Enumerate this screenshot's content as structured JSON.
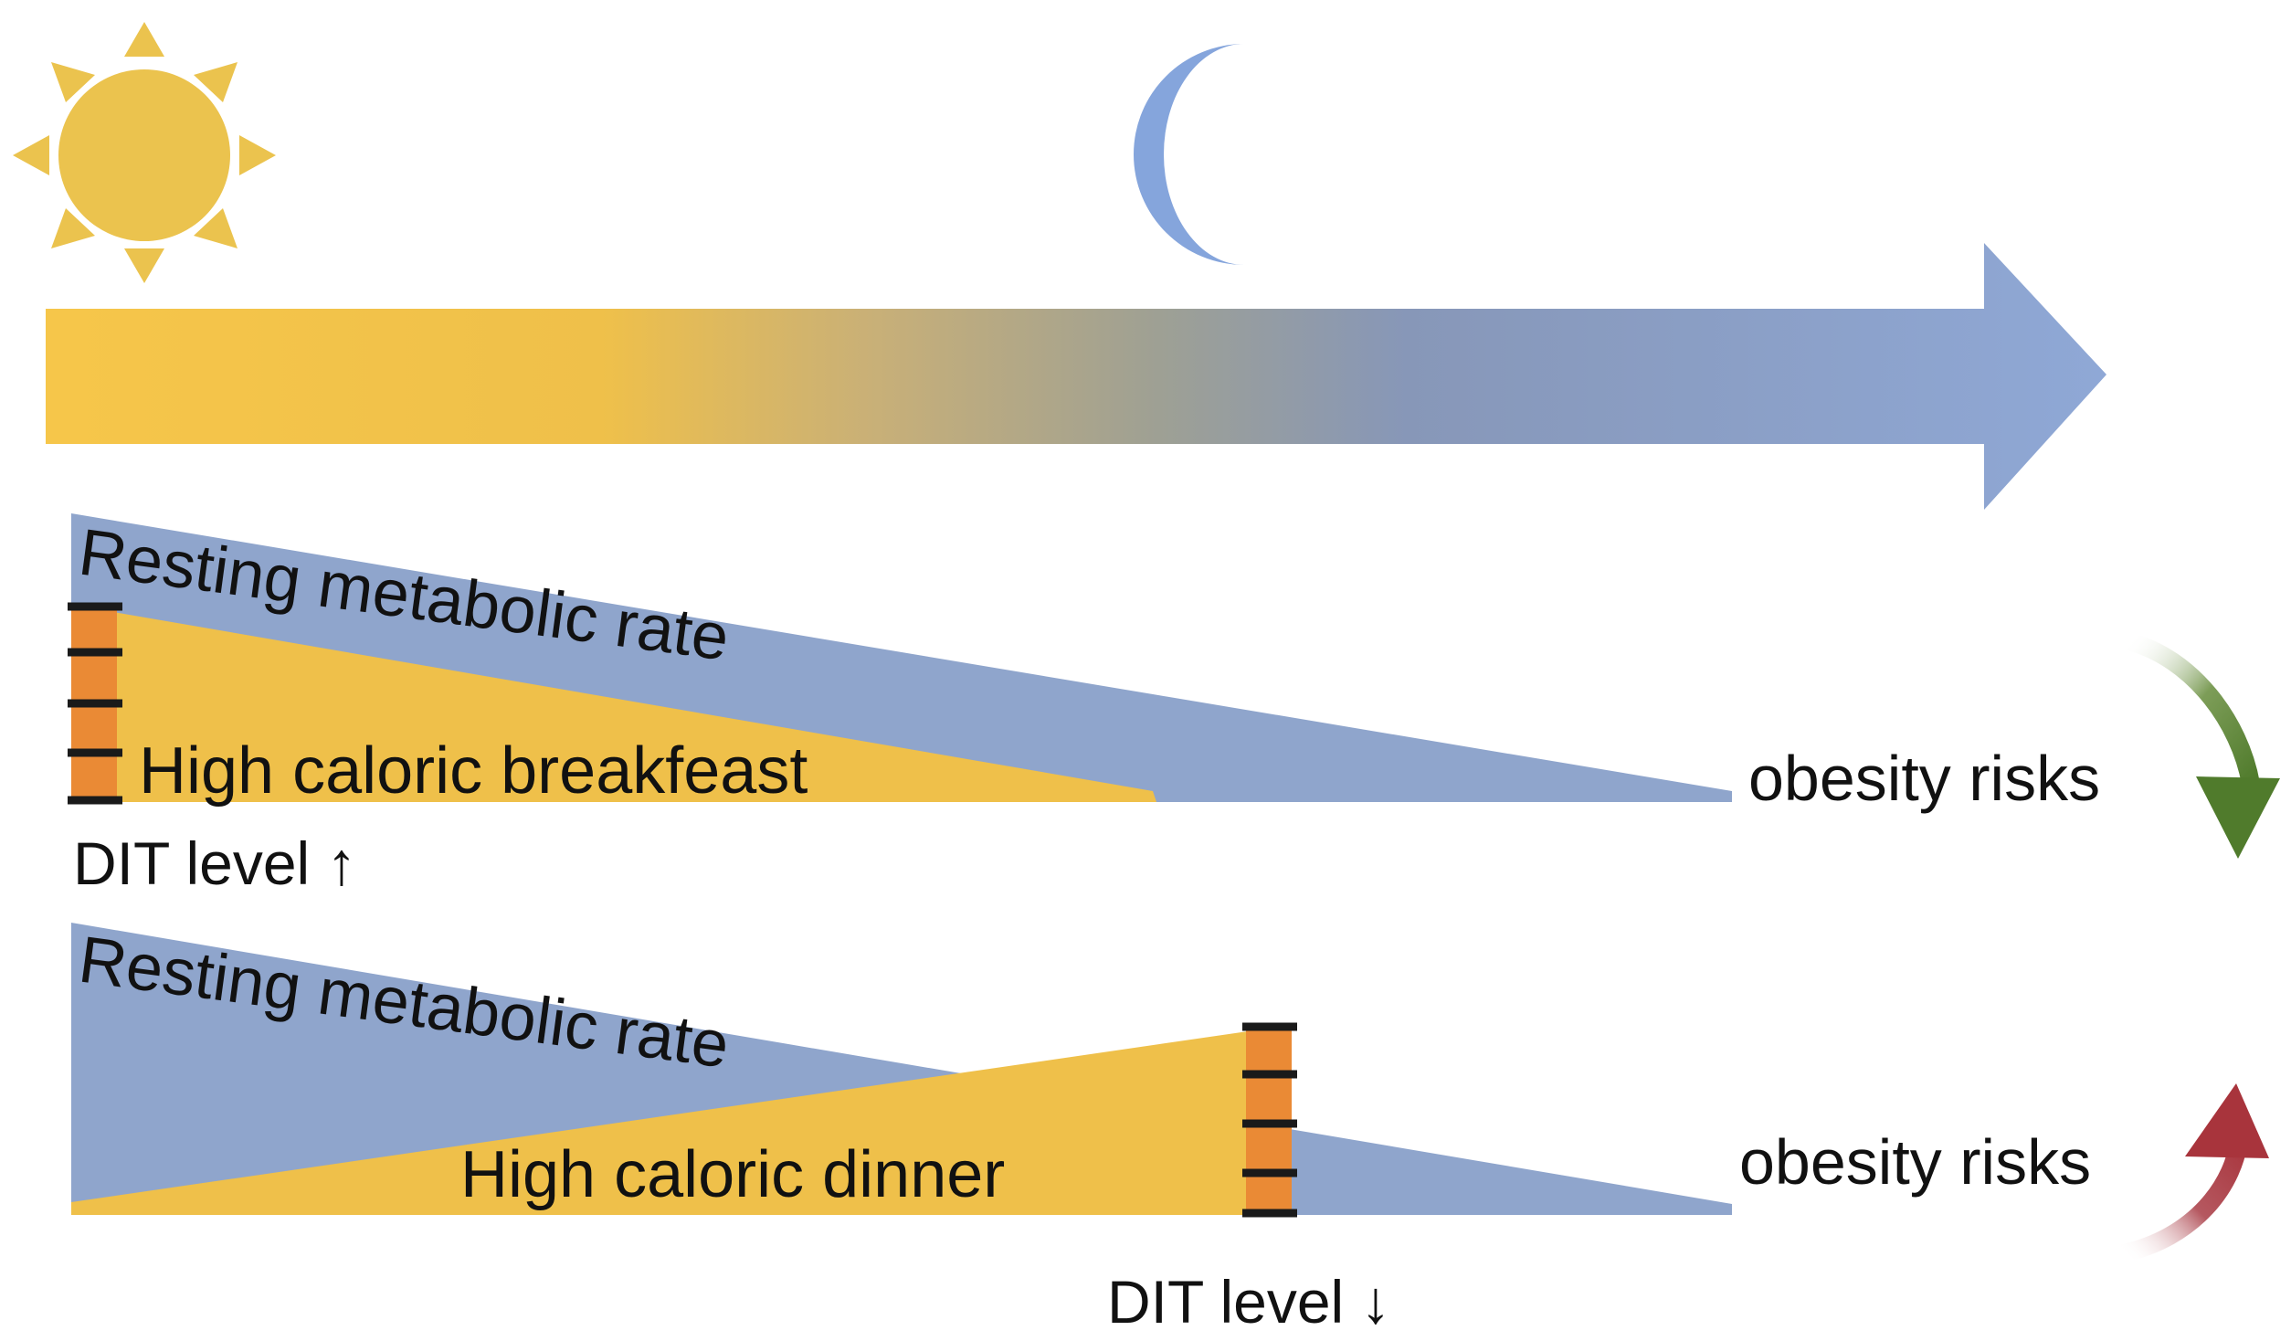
{
  "colors": {
    "sun": "#ebc34e",
    "moon": "#85a5dc",
    "arrow_day": "#f6c64a",
    "arrow_mid": "#9ea094",
    "arrow_night": "#8aa1cc",
    "resting_rate": "#8fa5cc",
    "meal": "#efc04a",
    "dit_bar": "#ea8a35",
    "tick": "#1a1a1a",
    "risk_down": "#507b2c",
    "risk_up": "#a8343c"
  },
  "icons": {
    "day": "sun-icon",
    "night": "moon-icon",
    "timeline": "day-night-arrow",
    "risk_decrease": "curved-down-arrow-icon",
    "risk_increase": "curved-up-arrow-icon"
  },
  "panels": {
    "breakfast": {
      "resting_label": "Resting metabolic rate",
      "meal_label": "High caloric breakfeast",
      "dit_label": "DIT level",
      "dit_arrow": "↑",
      "risk_label": "obesity risks",
      "risk_direction": "down"
    },
    "dinner": {
      "resting_label": "Resting metabolic rate",
      "meal_label": "High caloric dinner",
      "dit_label": "DIT level",
      "dit_arrow": "↓",
      "risk_label": "obesity risks",
      "risk_direction": "up"
    }
  }
}
